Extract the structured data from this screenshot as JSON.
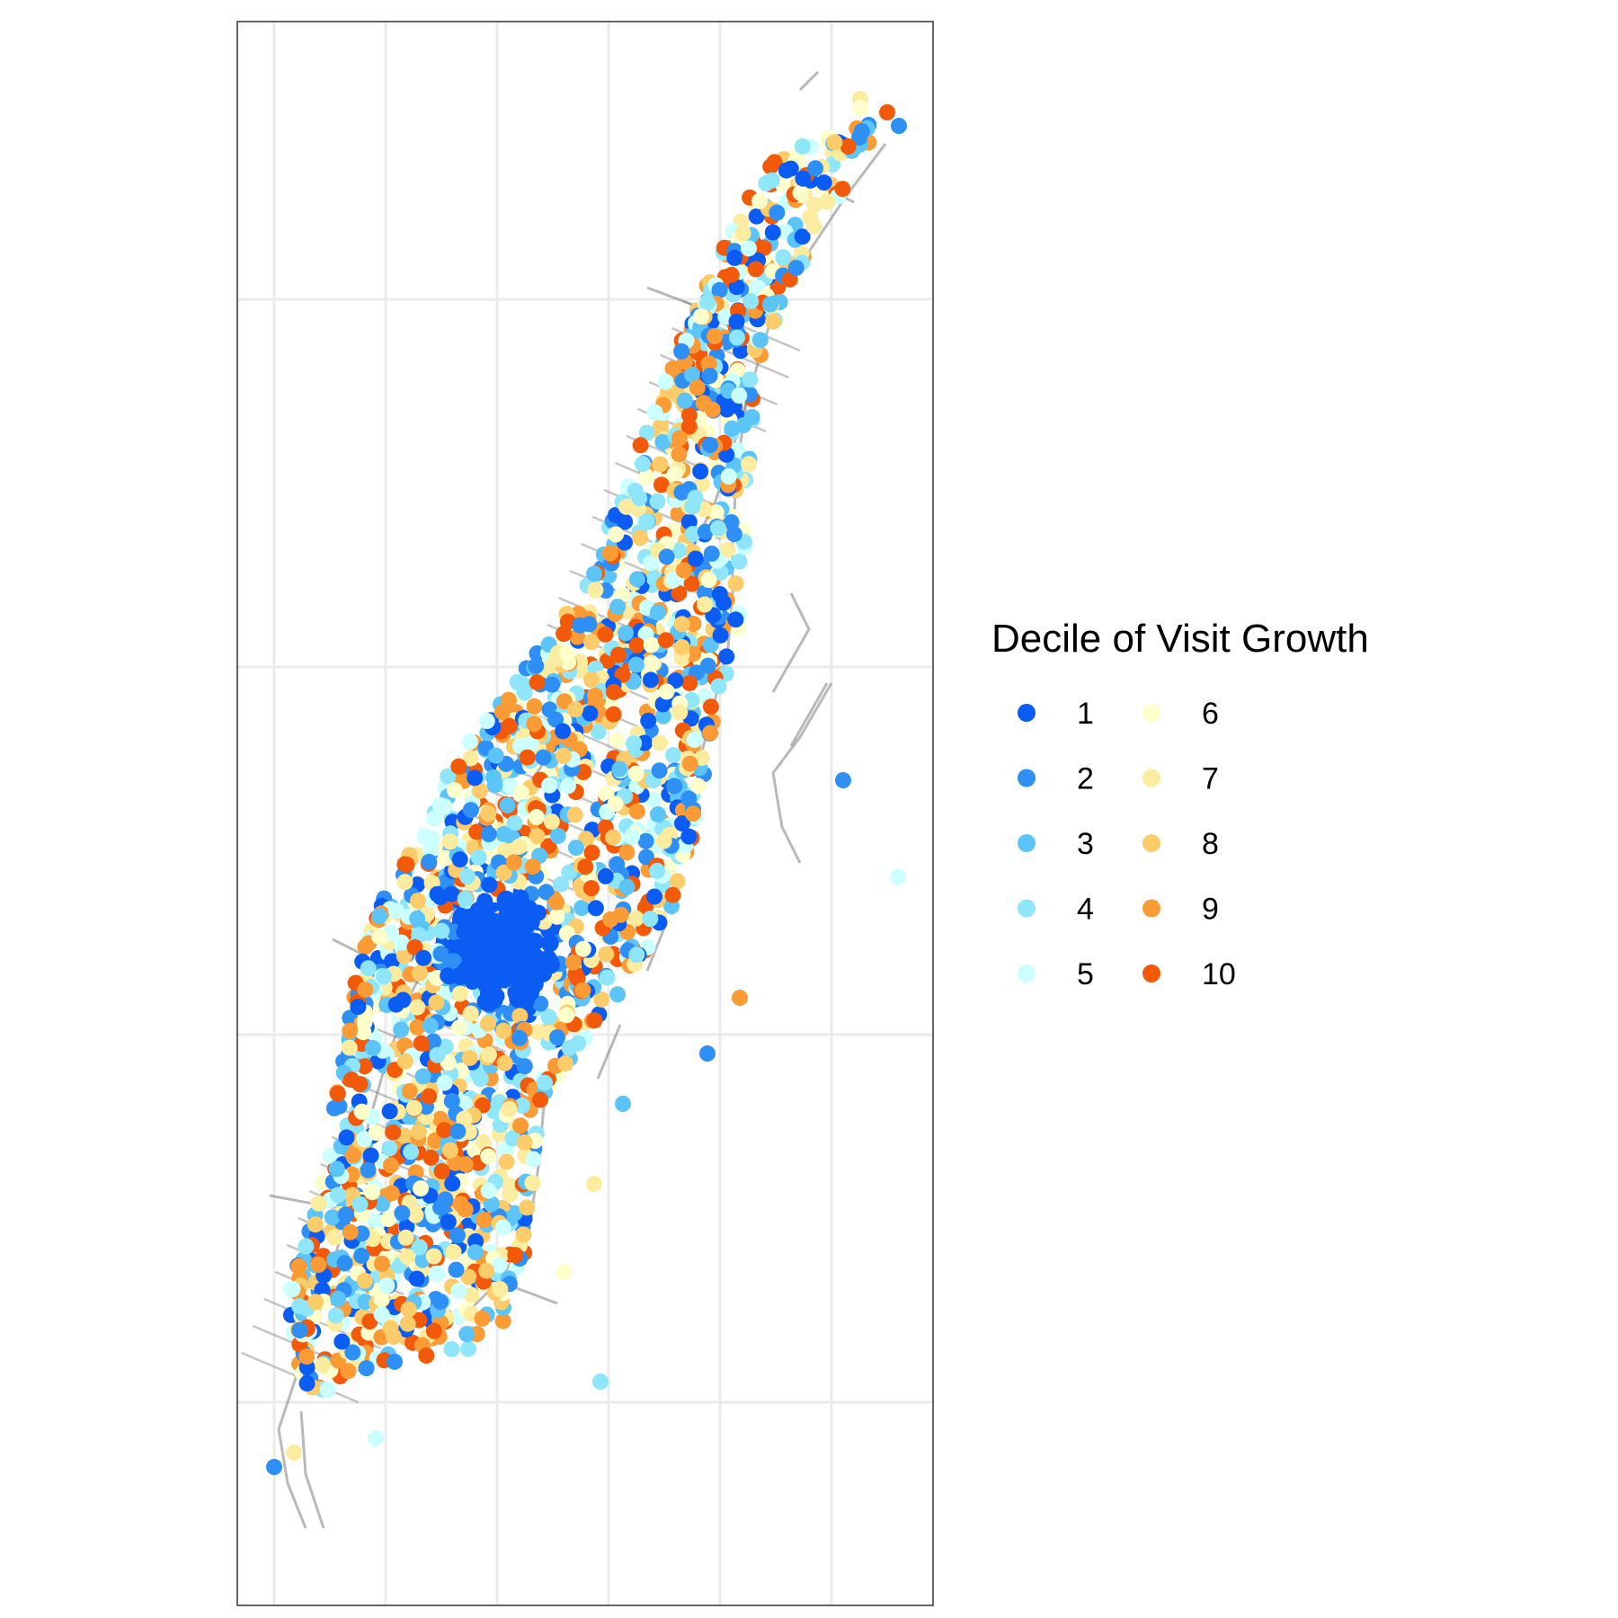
{
  "legend": {
    "title": "Decile of Visit Growth",
    "entries": [
      {
        "label": "1",
        "color": "#0a5cf2"
      },
      {
        "label": "2",
        "color": "#2e8ff5"
      },
      {
        "label": "3",
        "color": "#5cc4f7"
      },
      {
        "label": "4",
        "color": "#8fe6fa"
      },
      {
        "label": "5",
        "color": "#ccffff"
      },
      {
        "label": "6",
        "color": "#ffffcc"
      },
      {
        "label": "7",
        "color": "#fcec9f"
      },
      {
        "label": "8",
        "color": "#fccb6a"
      },
      {
        "label": "9",
        "color": "#fb9b36"
      },
      {
        "label": "10",
        "color": "#f25a0a"
      }
    ]
  },
  "colors": {
    "panel_border": "#333333",
    "grid": "#ebebeb",
    "roads": "#7f7f7f",
    "background": "#ffffff"
  }
}
